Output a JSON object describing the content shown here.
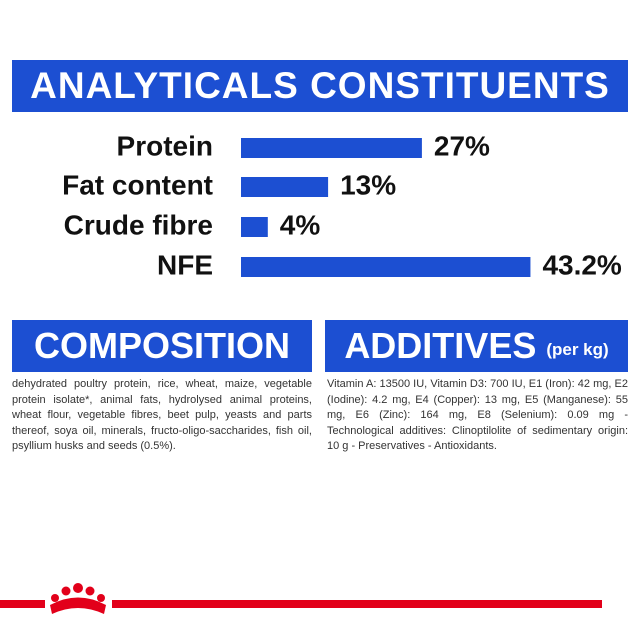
{
  "header": {
    "title": "ANALYTICALS CONSTITUENTS"
  },
  "chart_data": {
    "type": "bar",
    "orientation": "horizontal",
    "color": "#1c4fd2",
    "categories": [
      "Protein",
      "Fat content",
      "Crude fibre",
      "NFE"
    ],
    "values": [
      27,
      13,
      4,
      43.2
    ],
    "value_labels": [
      "27%",
      "13%",
      "4%",
      "43.2%"
    ]
  },
  "composition": {
    "title": "COMPOSITION",
    "text": "dehydrated poultry protein, rice, wheat, maize, vegetable protein isolate*, animal fats, hydrolysed animal proteins, wheat flour, vegetable fibres, beet pulp, yeasts and parts thereof, soya oil, minerals, fructo-oligo-saccharides, fish oil, psyllium husks and seeds (0.5%)."
  },
  "additives": {
    "title": "ADDITIVES",
    "unit": "(per kg)",
    "text": "Vitamin A: 13500 IU, Vitamin D3: 700 IU, E1 (Iron): 42 mg, E2 (Iodine): 4.2 mg, E4 (Copper): 13 mg, E5 (Manganese): 55 mg, E6 (Zinc): 164 mg, E8 (Selenium): 0.09 mg -Technological additives: Clinoptilolite of sedimentary origin: 10 g - Preservatives - Antioxidants."
  }
}
